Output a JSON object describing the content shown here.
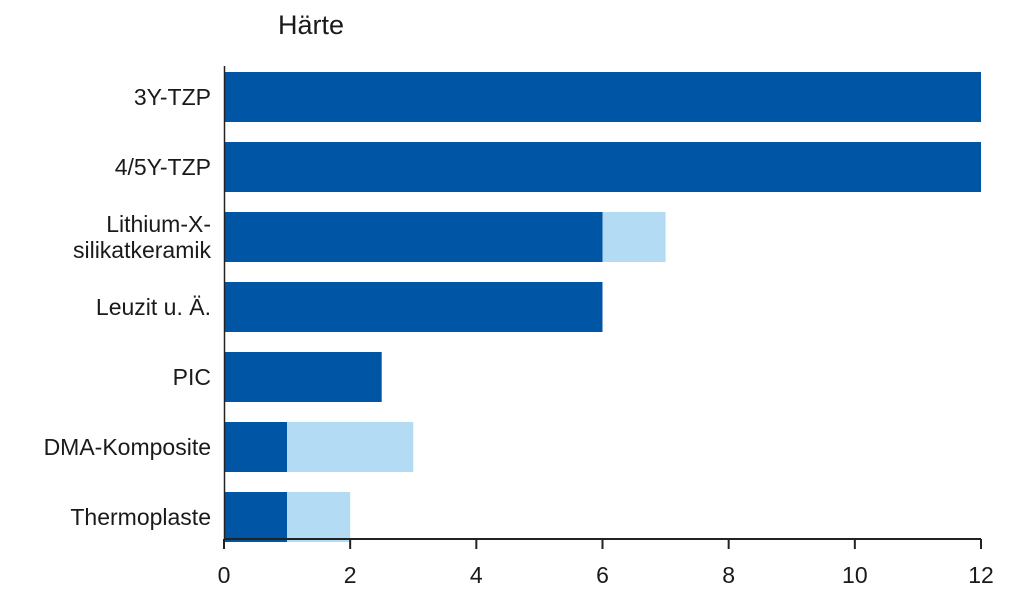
{
  "chart_data": {
    "type": "bar",
    "orientation": "horizontal",
    "stacked": true,
    "title": "Härte",
    "xlabel": "",
    "ylabel": "",
    "categories": [
      "3Y-TZP",
      "4/5Y-TZP",
      "Lithium-X-silikatkeramik",
      "Leuzit u. Ä.",
      "PIC",
      "DMA-Komposite",
      "Thermoplaste"
    ],
    "category_lines": [
      [
        "3Y-TZP"
      ],
      [
        "4/5Y-TZP"
      ],
      [
        "Lithium-X-",
        "silikatkeramik"
      ],
      [
        "Leuzit u. Ä."
      ],
      [
        "PIC"
      ],
      [
        "DMA-Komposite"
      ],
      [
        "Thermoplaste"
      ]
    ],
    "series": [
      {
        "values": [
          12,
          12,
          6,
          6,
          2.5,
          1,
          1
        ],
        "color": "#0055a4"
      },
      {
        "values": [
          0,
          0,
          1,
          0,
          0,
          2,
          1
        ],
        "color": "#b3dcf4"
      }
    ],
    "xlim": [
      0,
      12
    ],
    "xticks": [
      0,
      2,
      4,
      6,
      8,
      10,
      12
    ],
    "grid": false,
    "legend": "none"
  }
}
